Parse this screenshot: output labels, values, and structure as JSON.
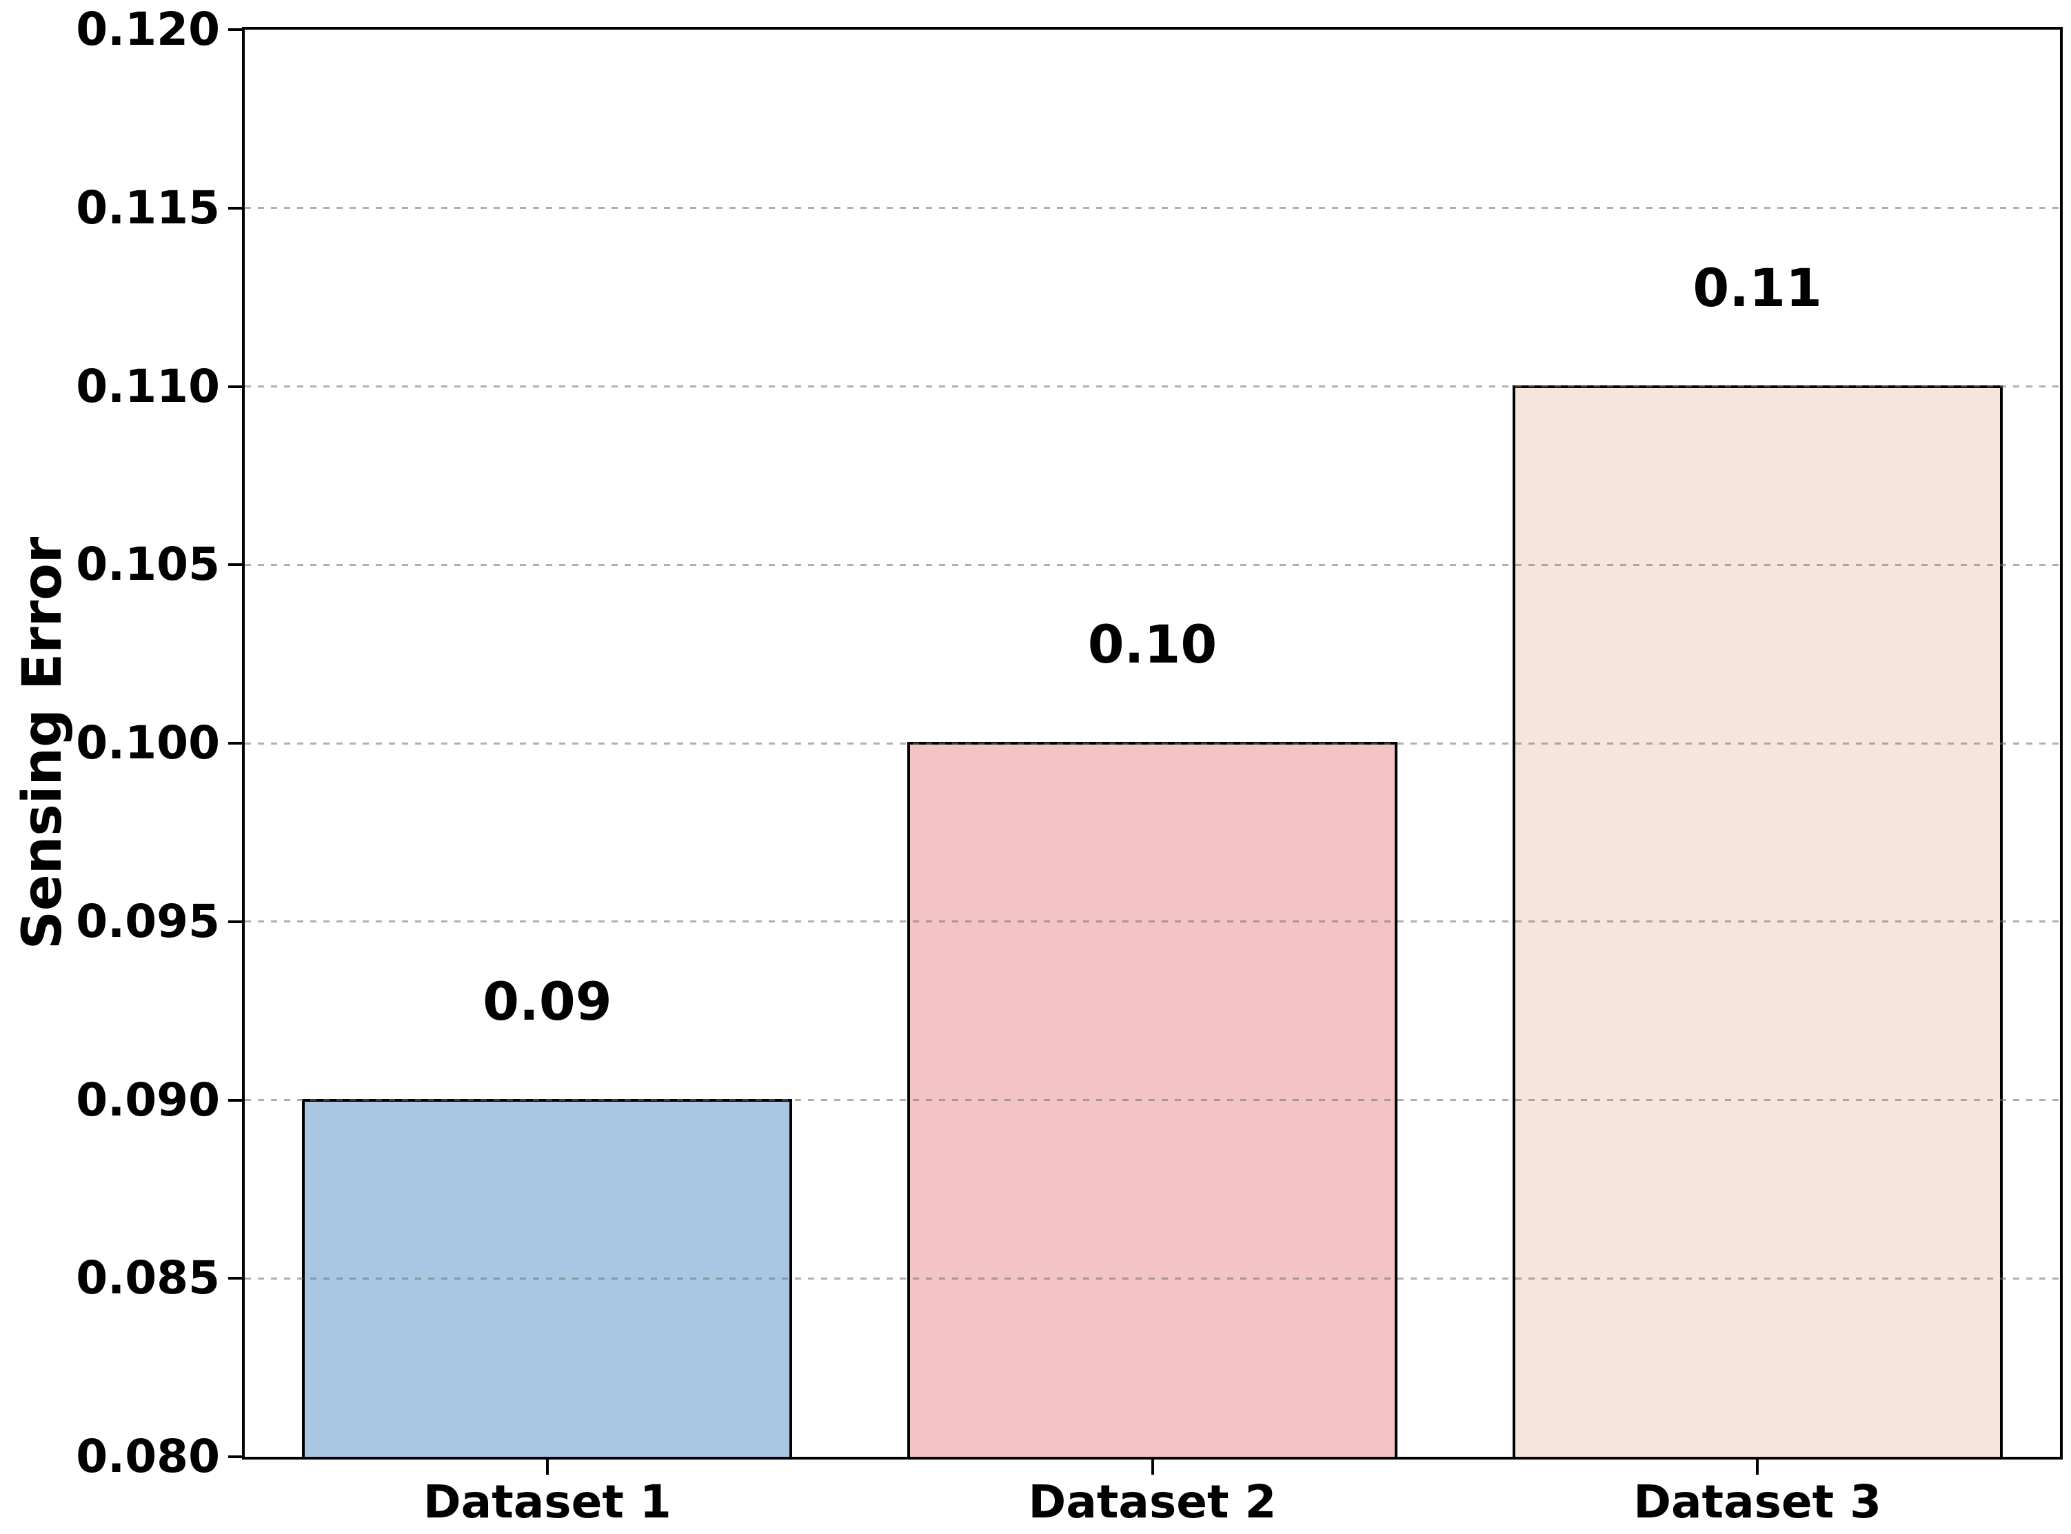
{
  "figure": {
    "background": "#ffffff",
    "text_color": "#000000",
    "spine_color": "#000000"
  },
  "chart_data": {
    "type": "bar",
    "title": "",
    "xlabel": "",
    "ylabel": "Sensing Error",
    "categories": [
      "Dataset 1",
      "Dataset 2",
      "Dataset 3"
    ],
    "values": [
      0.09,
      0.1,
      0.11
    ],
    "bar_value_labels": [
      "0.09",
      "0.10",
      "0.11"
    ],
    "bar_colors": [
      "#a9c7e3",
      "#f4c3c4",
      "#f6e5db"
    ],
    "bar_edge_color": "#000000",
    "bar_width_fraction": 0.81,
    "ylim": [
      0.08,
      0.12
    ],
    "yticks": [
      {
        "value": 0.08,
        "label": "0.080"
      },
      {
        "value": 0.085,
        "label": "0.085"
      },
      {
        "value": 0.09,
        "label": "0.090"
      },
      {
        "value": 0.095,
        "label": "0.095"
      },
      {
        "value": 0.1,
        "label": "0.100"
      },
      {
        "value": 0.105,
        "label": "0.105"
      },
      {
        "value": 0.11,
        "label": "0.110"
      },
      {
        "value": 0.115,
        "label": "0.115"
      },
      {
        "value": 0.12,
        "label": "0.120"
      }
    ],
    "grid": {
      "axis": "y",
      "style": "dashed",
      "color": "#c6c6c6",
      "drawn_above_bars": true
    },
    "legend": "none"
  }
}
